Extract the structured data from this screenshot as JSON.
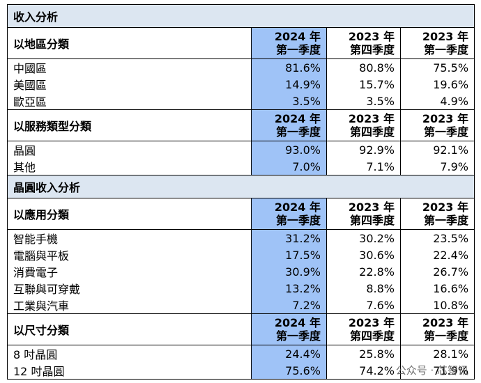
{
  "sections": {
    "revenue": "收入分析",
    "wafer": "晶圓收入分析"
  },
  "headers": {
    "q1_2024": [
      "2024 年",
      "第一季度"
    ],
    "q4_2023": [
      "2023 年",
      "第四季度"
    ],
    "q1_2023": [
      "2023 年",
      "第一季度"
    ]
  },
  "groups": {
    "region": {
      "label": "以地區分類",
      "rows": [
        {
          "name": "中國區",
          "values": [
            "81.6%",
            "80.8%",
            "75.5%"
          ]
        },
        {
          "name": "美國區",
          "values": [
            "14.9%",
            "15.7%",
            "19.6%"
          ]
        },
        {
          "name": "歐亞區",
          "values": [
            "3.5%",
            "3.5%",
            "4.9%"
          ]
        }
      ]
    },
    "service": {
      "label": "以服務類型分類",
      "rows": [
        {
          "name": "晶圓",
          "values": [
            "93.0%",
            "92.9%",
            "92.1%"
          ]
        },
        {
          "name": "其他",
          "values": [
            "7.0%",
            "7.1%",
            "7.9%"
          ]
        }
      ]
    },
    "application": {
      "label": "以應用分類",
      "rows": [
        {
          "name": "智能手機",
          "values": [
            "31.2%",
            "30.2%",
            "23.5%"
          ]
        },
        {
          "name": "電腦與平板",
          "values": [
            "17.5%",
            "30.6%",
            "22.4%"
          ]
        },
        {
          "name": "消費電子",
          "values": [
            "30.9%",
            "22.8%",
            "26.7%"
          ]
        },
        {
          "name": "互聯與可穿戴",
          "values": [
            "13.2%",
            "8.8%",
            "16.6%"
          ]
        },
        {
          "name": "工業與汽車",
          "values": [
            "7.2%",
            "7.6%",
            "10.8%"
          ]
        }
      ]
    },
    "size": {
      "label": "以尺寸分類",
      "rows": [
        {
          "name": "8 吋晶圓",
          "values": [
            "24.4%",
            "25.8%",
            "28.1%"
          ]
        },
        {
          "name": "12 吋晶圓",
          "values": [
            "75.6%",
            "74.2%",
            "71.9%"
          ]
        }
      ]
    }
  },
  "watermark": "公众号 · 芯智讯",
  "colors": {
    "section_bg": "#dce6f1",
    "highlight": "#9fc3f7"
  }
}
